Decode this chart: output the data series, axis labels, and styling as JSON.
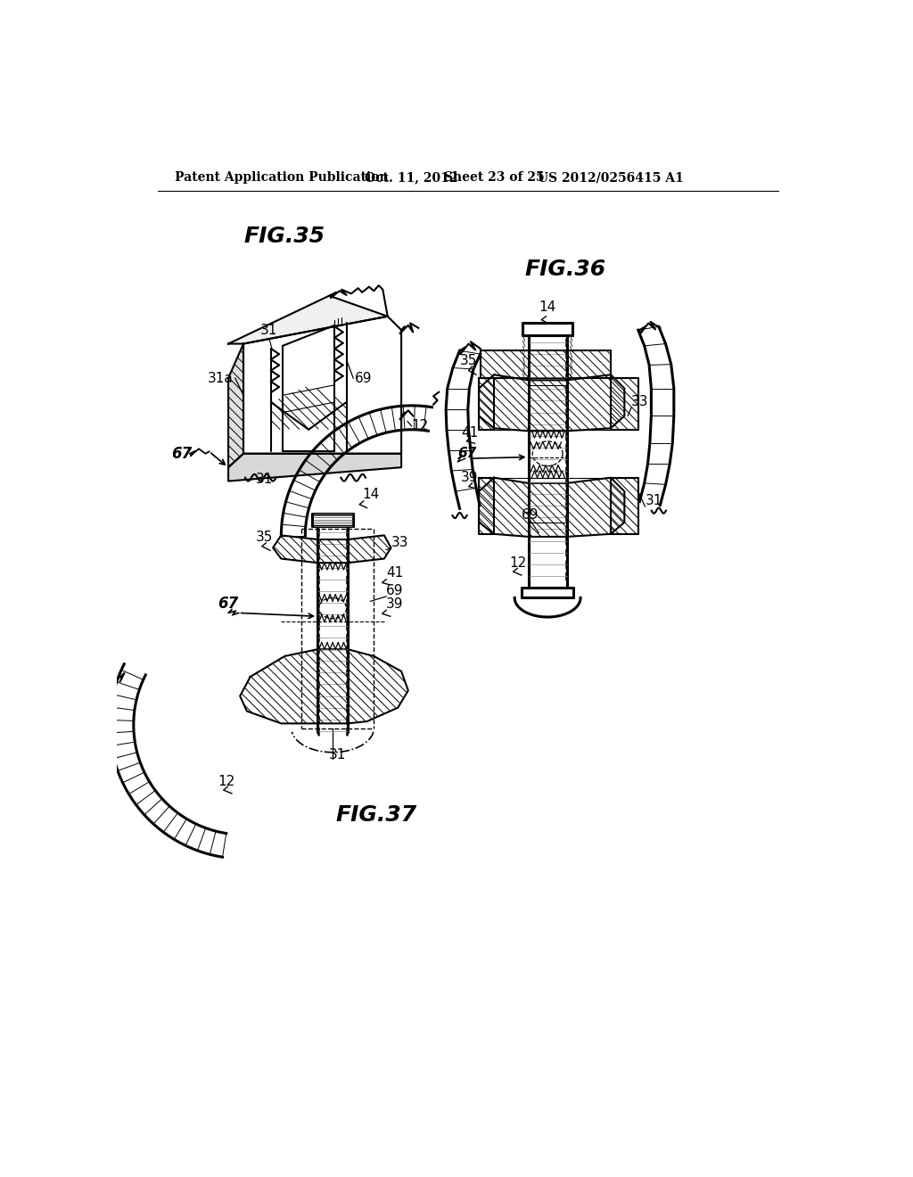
{
  "background_color": "#ffffff",
  "header_text": "Patent Application Publication",
  "header_date": "Oct. 11, 2012",
  "header_sheet": "Sheet 23 of 25",
  "header_patent": "US 2012/0256415 A1",
  "fig35_label": "FIG.35",
  "fig36_label": "FIG.36",
  "fig37_label": "FIG.37",
  "line_color": "#000000",
  "text_color": "#000000",
  "lw_thin": 0.8,
  "lw_med": 1.5,
  "lw_thick": 2.2
}
